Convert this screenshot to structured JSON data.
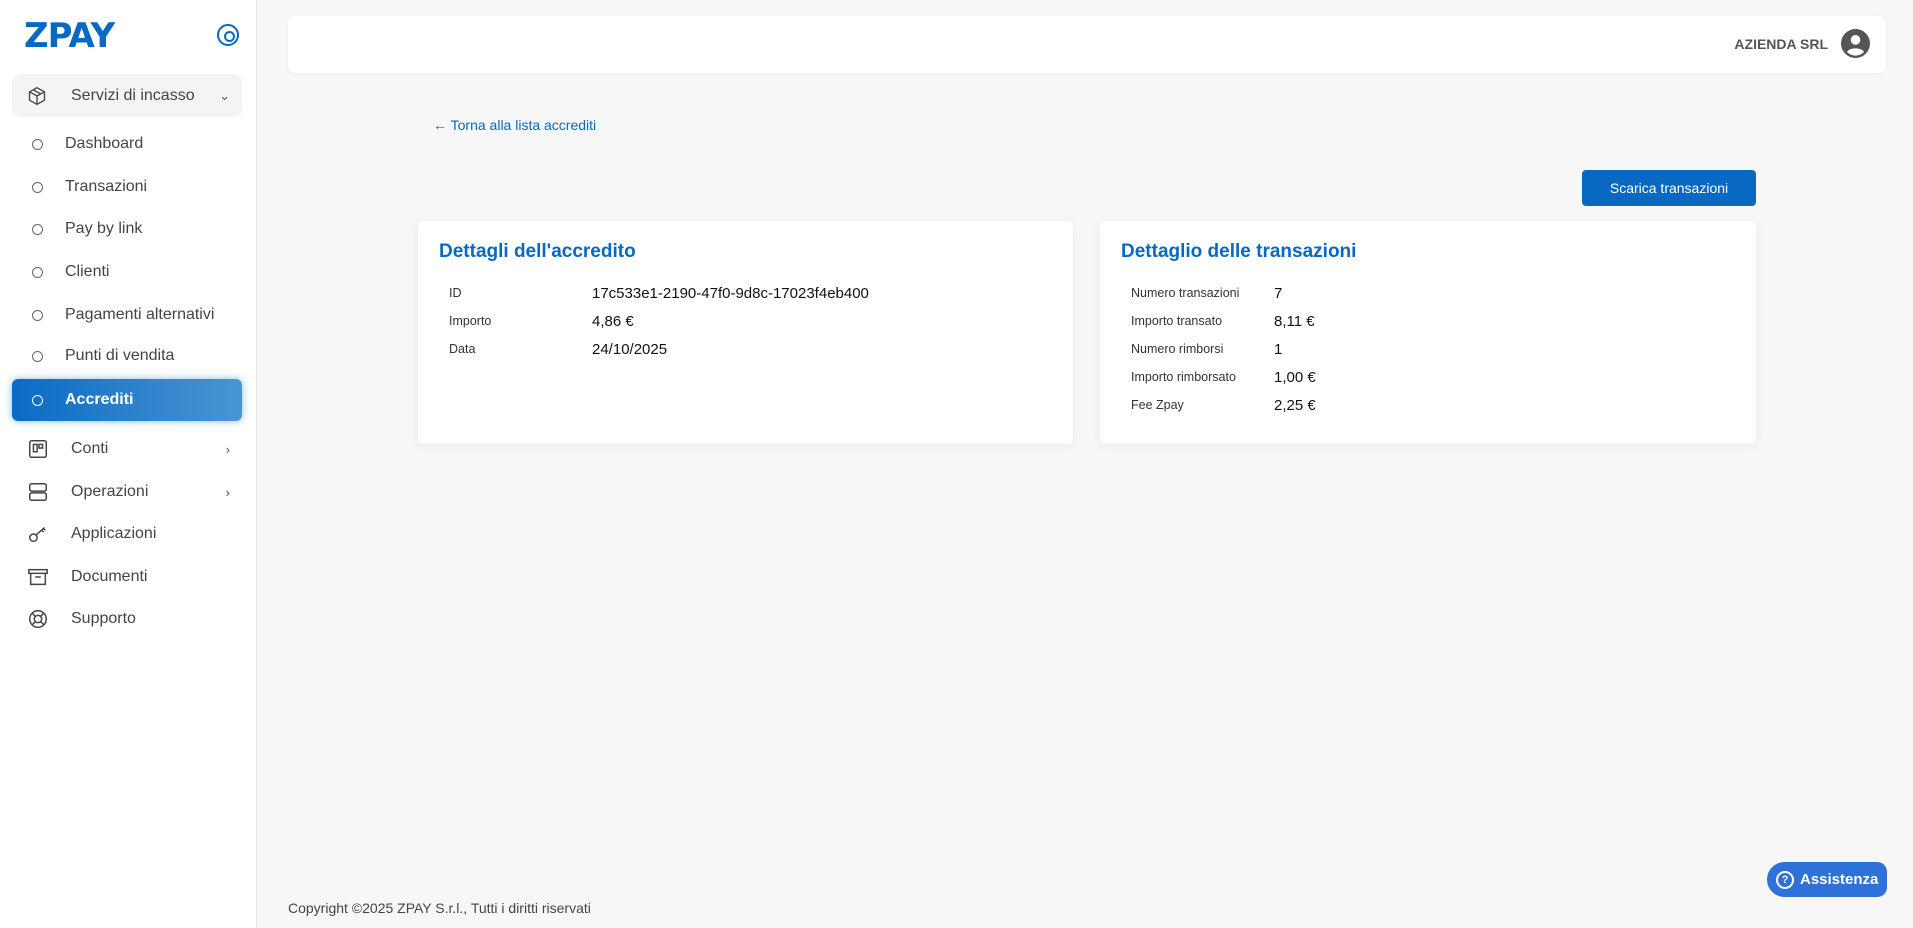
{
  "brand": {
    "logo": "ZPAY",
    "accent": "#0868c2"
  },
  "sidebar": {
    "group": {
      "label": "Servizi di incasso",
      "icon": "box-icon"
    },
    "sub_items": [
      {
        "label": "Dashboard"
      },
      {
        "label": "Transazioni"
      },
      {
        "label": "Pay by link"
      },
      {
        "label": "Clienti"
      },
      {
        "label": "Pagamenti alternativi"
      },
      {
        "label": "Punti di vendita"
      },
      {
        "label": "Accrediti",
        "active": true
      }
    ],
    "items": [
      {
        "label": "Conti",
        "icon": "board-icon"
      },
      {
        "label": "Operazioni",
        "icon": "server-icon"
      },
      {
        "label": "Applicazioni",
        "icon": "key-icon"
      },
      {
        "label": "Documenti",
        "icon": "archive-icon"
      },
      {
        "label": "Supporto",
        "icon": "lifebuoy-icon"
      }
    ]
  },
  "header": {
    "company": "AZIENDA SRL"
  },
  "main": {
    "back_link": "← Torna alla lista accrediti",
    "download_button": "Scarica transazioni",
    "credit_card": {
      "title": "Dettagli dell'accredito",
      "rows": [
        {
          "label": "ID",
          "value": "17c533e1-2190-47f0-9d8c-17023f4eb400"
        },
        {
          "label": "Importo",
          "value": "4,86 €"
        },
        {
          "label": "Data",
          "value": "24/10/2025"
        }
      ]
    },
    "tx_card": {
      "title": "Dettaglio delle transazioni",
      "rows": [
        {
          "label": "Numero transazioni",
          "value": "7"
        },
        {
          "label": "Importo transato",
          "value": "8,11 €"
        },
        {
          "label": "Numero rimborsi",
          "value": "1"
        },
        {
          "label": "Importo rimborsato",
          "value": "1,00 €"
        },
        {
          "label": "Fee Zpay",
          "value": "2,25 €"
        }
      ]
    }
  },
  "footer": {
    "copyright": "Copyright ©2025 ZPAY S.r.l., Tutti i diritti riservati"
  },
  "assist": {
    "label": "Assistenza"
  }
}
